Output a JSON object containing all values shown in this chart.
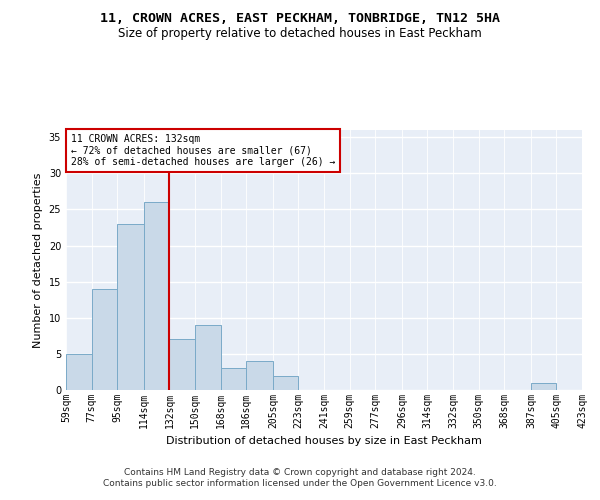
{
  "title": "11, CROWN ACRES, EAST PECKHAM, TONBRIDGE, TN12 5HA",
  "subtitle": "Size of property relative to detached houses in East Peckham",
  "xlabel": "Distribution of detached houses by size in East Peckham",
  "ylabel": "Number of detached properties",
  "bar_color": "#c9d9e8",
  "bar_edge_color": "#7aaac8",
  "vline_x": 132,
  "vline_color": "#cc0000",
  "annotation_text": "11 CROWN ACRES: 132sqm\n← 72% of detached houses are smaller (67)\n28% of semi-detached houses are larger (26) →",
  "annotation_box_color": "#cc0000",
  "bins": [
    59,
    77,
    95,
    114,
    132,
    150,
    168,
    186,
    205,
    223,
    241,
    259,
    277,
    296,
    314,
    332,
    350,
    368,
    387,
    405,
    423
  ],
  "bin_labels": [
    "59sqm",
    "77sqm",
    "95sqm",
    "114sqm",
    "132sqm",
    "150sqm",
    "168sqm",
    "186sqm",
    "205sqm",
    "223sqm",
    "241sqm",
    "259sqm",
    "277sqm",
    "296sqm",
    "314sqm",
    "332sqm",
    "350sqm",
    "368sqm",
    "387sqm",
    "405sqm",
    "423sqm"
  ],
  "counts": [
    5,
    14,
    23,
    26,
    7,
    9,
    3,
    4,
    2,
    0,
    0,
    0,
    0,
    0,
    0,
    0,
    0,
    0,
    1,
    0
  ],
  "ylim": [
    0,
    36
  ],
  "yticks": [
    0,
    5,
    10,
    15,
    20,
    25,
    30,
    35
  ],
  "footer": "Contains HM Land Registry data © Crown copyright and database right 2024.\nContains public sector information licensed under the Open Government Licence v3.0.",
  "background_color": "#e8eef7",
  "title_fontsize": 9.5,
  "subtitle_fontsize": 8.5,
  "axis_label_fontsize": 8,
  "tick_fontsize": 7,
  "footer_fontsize": 6.5
}
